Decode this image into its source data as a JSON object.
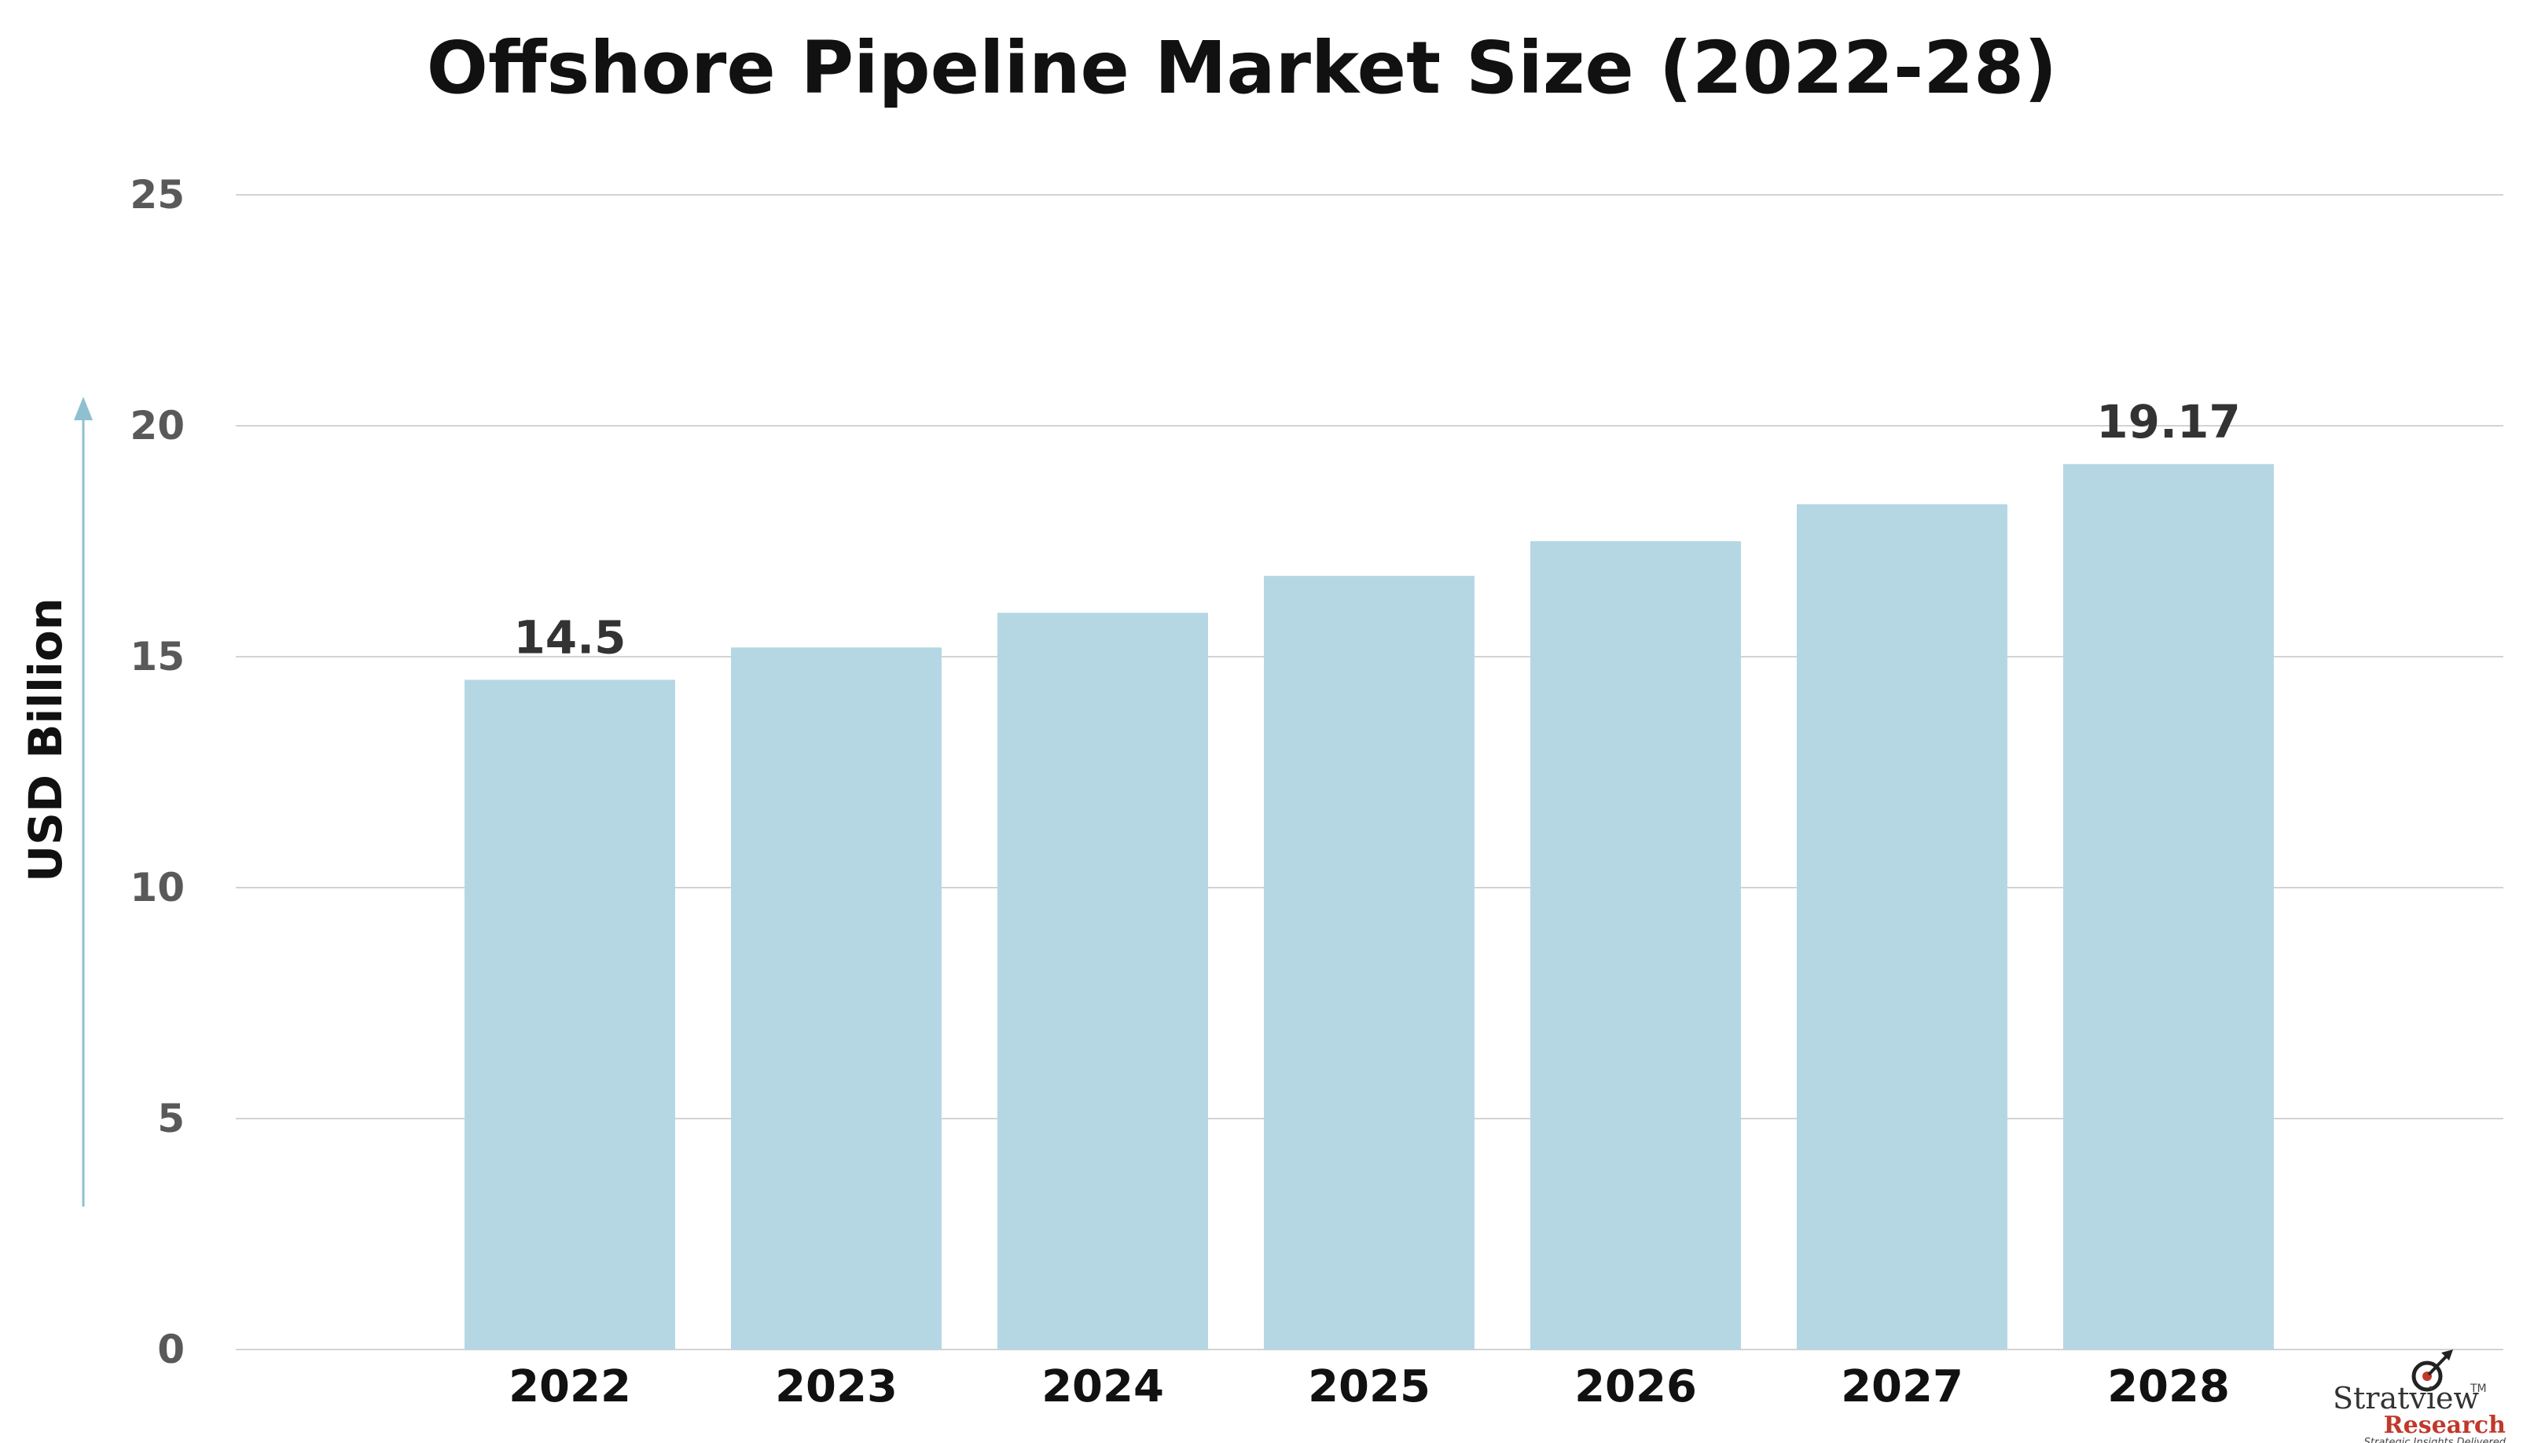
{
  "chart_data": {
    "type": "bar",
    "title": "Offshore Pipeline Market Size (2022-28)",
    "xlabel": "",
    "ylabel": "USD Billion",
    "categories": [
      "2022",
      "2023",
      "2024",
      "2025",
      "2026",
      "2027",
      "2028"
    ],
    "values": [
      14.5,
      15.2,
      15.95,
      16.75,
      17.5,
      18.3,
      19.17
    ],
    "data_labels": [
      "14.5",
      "",
      "",
      "",
      "",
      "",
      "19.17"
    ],
    "ylim": [
      0,
      25
    ],
    "yticks": [
      0,
      5,
      10,
      15,
      20,
      25
    ],
    "grid": true,
    "legend": "none",
    "colors": {
      "bar": "#b5d7e4",
      "grid": "#d3d3d3",
      "axis_arrow": "#8fc0cf"
    }
  },
  "branding": {
    "name": "Stratview",
    "tm": "TM",
    "sub": "Research",
    "tagline": "Strategic Insights Delivered",
    "icon": "target-arrow-icon"
  }
}
